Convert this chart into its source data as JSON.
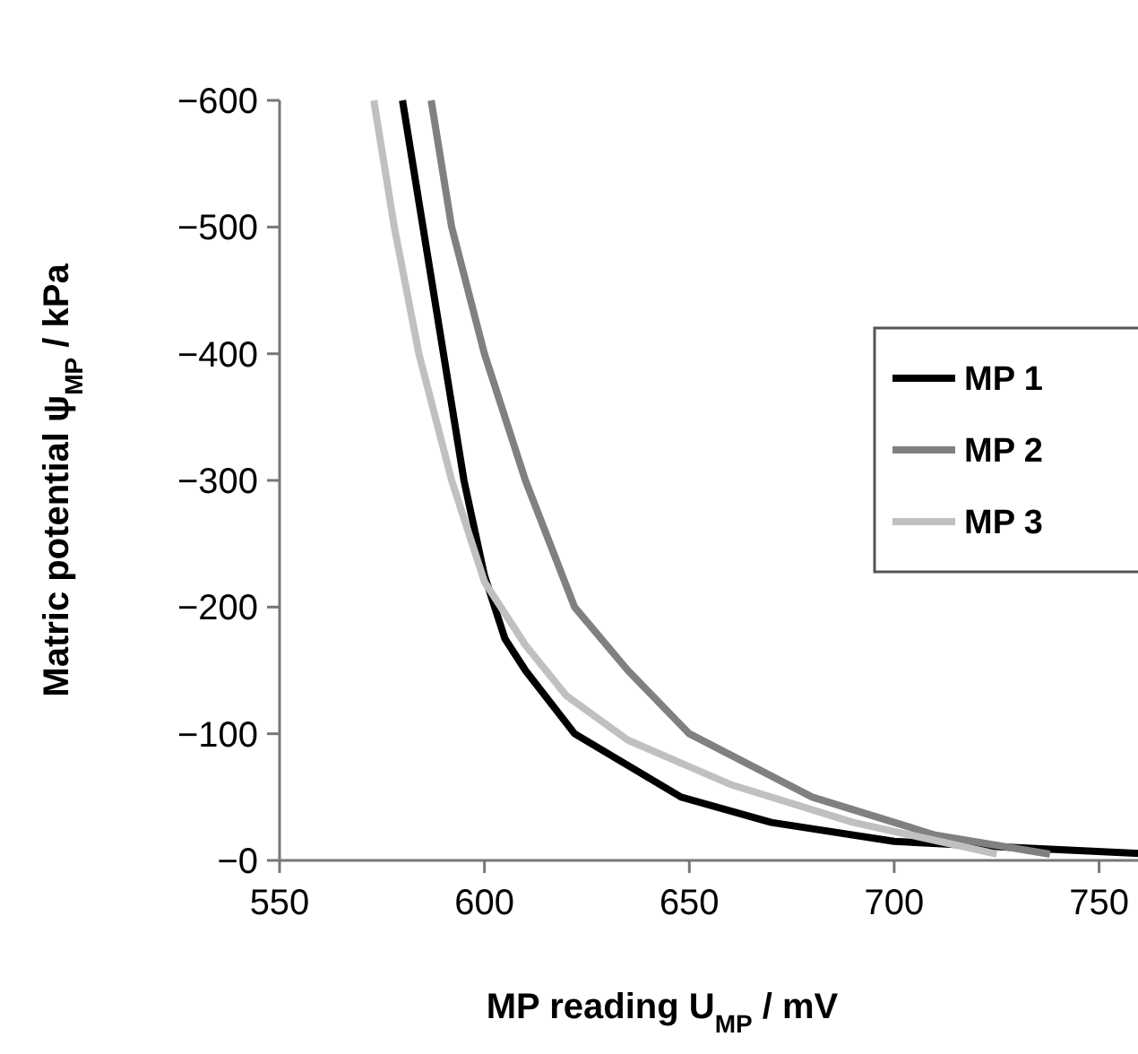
{
  "chart_data": {
    "type": "line",
    "xlabel": "MP reading U$_{MP}$ / mV",
    "ylabel": "Matric potential ψ$_{MP}$ / kPa",
    "xlim": [
      550,
      763
    ],
    "xticks": [
      550,
      600,
      650,
      700,
      750
    ],
    "ylim": [
      0,
      -600
    ],
    "yticks": [
      {
        "value": 0,
        "label": "−0"
      },
      {
        "value": -100,
        "label": "−100"
      },
      {
        "value": -200,
        "label": "−200"
      },
      {
        "value": -300,
        "label": "−300"
      },
      {
        "value": -400,
        "label": "−400"
      },
      {
        "value": -500,
        "label": "−500"
      },
      {
        "value": -600,
        "label": "−600"
      }
    ],
    "grid": false,
    "legend": "right",
    "marker": "none",
    "line_style": "solid",
    "series": [
      {
        "name": "MP 1",
        "color": "#000000",
        "x": [
          580,
          585,
          590,
          595,
          600,
          605,
          610,
          622,
          648,
          670,
          700,
          730,
          763
        ],
        "values": [
          -600,
          -500,
          -400,
          -300,
          -225,
          -175,
          -150,
          -100,
          -50,
          -30,
          -15,
          -10,
          -5
        ]
      },
      {
        "name": "MP 2",
        "color": "#808080",
        "x": [
          587,
          592,
          600,
          610,
          622,
          635,
          650,
          680,
          710,
          738
        ],
        "values": [
          -600,
          -500,
          -400,
          -300,
          -200,
          -150,
          -100,
          -50,
          -20,
          -5
        ]
      },
      {
        "name": "MP 3",
        "color": "#c0c0c0",
        "x": [
          573,
          578,
          584,
          592,
          600,
          610,
          620,
          635,
          660,
          690,
          725
        ],
        "values": [
          -600,
          -500,
          -400,
          -300,
          -220,
          -170,
          -130,
          -95,
          -60,
          -30,
          -5
        ]
      }
    ]
  }
}
